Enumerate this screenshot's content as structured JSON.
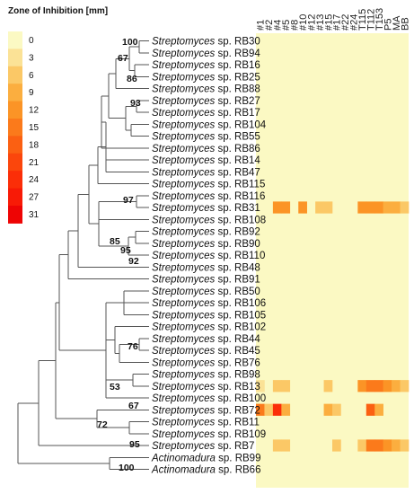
{
  "legend": {
    "title": "Zone of Inhibition [mm]",
    "values": [
      "0",
      "3",
      "6",
      "9",
      "12",
      "15",
      "18",
      "21",
      "24",
      "27",
      "31"
    ],
    "colors": [
      "#fbf9c3",
      "#fbe296",
      "#fbc866",
      "#fbae3f",
      "#fb9426",
      "#fb7a1b",
      "#fb6012",
      "#fb460c",
      "#fb2e08",
      "#f81a06",
      "#ee0404"
    ]
  },
  "columns": [
    "#1",
    "#2",
    "#4",
    "#5",
    "#8",
    "#10",
    "#12",
    "#13",
    "#15",
    "#17",
    "#22",
    "#24",
    "T115",
    "T112",
    "T153",
    "P5",
    "MA",
    "BB"
  ],
  "rows": [
    {
      "genus": "Streptomyces",
      "suffix": " sp. RB30"
    },
    {
      "genus": "Streptomyces",
      "suffix": " sp. RB94"
    },
    {
      "genus": "Streptomyces",
      "suffix": " sp. RB16"
    },
    {
      "genus": "Streptomyces",
      "suffix": " sp. RB25"
    },
    {
      "genus": "Streptomyces",
      "suffix": " sp. RB88"
    },
    {
      "genus": "Streptomyces",
      "suffix": " sp. RB27"
    },
    {
      "genus": "Streptomyces",
      "suffix": " sp. RB17"
    },
    {
      "genus": "Streptomyces",
      "suffix": " sp. RB104"
    },
    {
      "genus": "Streptomyces",
      "suffix": " sp. RB55"
    },
    {
      "genus": "Streptomyces",
      "suffix": " sp. RB86"
    },
    {
      "genus": "Streptomyces",
      "suffix": " sp. RB14"
    },
    {
      "genus": "Streptomyces",
      "suffix": " sp. RB47"
    },
    {
      "genus": "Streptomyces",
      "suffix": " sp. RB115"
    },
    {
      "genus": "Streptomyces",
      "suffix": " sp. RB116"
    },
    {
      "genus": "Streptomyces",
      "suffix": " sp. RB31"
    },
    {
      "genus": "Streptomyces",
      "suffix": " sp. RB108"
    },
    {
      "genus": "Streptomyces",
      "suffix": " sp. RB92"
    },
    {
      "genus": "Streptomyces",
      "suffix": " sp. RB90"
    },
    {
      "genus": "Streptomyces",
      "suffix": " sp. RB110"
    },
    {
      "genus": "Streptomyces",
      "suffix": " sp. RB48"
    },
    {
      "genus": "Streptomyces",
      "suffix": " sp. RB91"
    },
    {
      "genus": "Streptomyces",
      "suffix": " sp. RB50"
    },
    {
      "genus": "Streptomyces",
      "suffix": " sp. RB106"
    },
    {
      "genus": "Streptomyces",
      "suffix": " sp. RB105"
    },
    {
      "genus": "Streptomyces",
      "suffix": " sp. RB102"
    },
    {
      "genus": "Streptomyces",
      "suffix": " sp. RB44"
    },
    {
      "genus": "Streptomyces",
      "suffix": " sp. RB45"
    },
    {
      "genus": "Streptomyces",
      "suffix": " sp. RB76"
    },
    {
      "genus": "Streptomyces",
      "suffix": " sp. RB98"
    },
    {
      "genus": "Streptomyces",
      "suffix": " sp. RB13"
    },
    {
      "genus": "Streptomyces",
      "suffix": " sp. RB100"
    },
    {
      "genus": "Streptomyces",
      "suffix": " sp. RB72"
    },
    {
      "genus": "Streptomyces",
      "suffix": " sp. RB11"
    },
    {
      "genus": "Streptomyces",
      "suffix": " sp. RB109"
    },
    {
      "genus": "Streptomyces",
      "suffix": " sp. RB7"
    },
    {
      "genus": "Actinomadura",
      "suffix": " sp. RB99"
    },
    {
      "genus": "Actinomadura",
      "suffix": " sp. RB66"
    }
  ],
  "heat_cells": [
    {
      "row": "RB31",
      "col": "#4",
      "value": 12
    },
    {
      "row": "RB31",
      "col": "#5",
      "value": 12
    },
    {
      "row": "RB31",
      "col": "#10",
      "value": 12
    },
    {
      "row": "RB31",
      "col": "#13",
      "value": 6
    },
    {
      "row": "RB31",
      "col": "#15",
      "value": 6
    },
    {
      "row": "RB31",
      "col": "T115",
      "value": 12
    },
    {
      "row": "RB31",
      "col": "T112",
      "value": 12
    },
    {
      "row": "RB31",
      "col": "T153",
      "value": 12
    },
    {
      "row": "RB31",
      "col": "P5",
      "value": 9
    },
    {
      "row": "RB31",
      "col": "MA",
      "value": 9
    },
    {
      "row": "RB31",
      "col": "BB",
      "value": 6
    },
    {
      "row": "RB13",
      "col": "#1",
      "value": 3
    },
    {
      "row": "RB13",
      "col": "#4",
      "value": 6
    },
    {
      "row": "RB13",
      "col": "#5",
      "value": 6
    },
    {
      "row": "RB13",
      "col": "#15",
      "value": 6
    },
    {
      "row": "RB13",
      "col": "T115",
      "value": 12
    },
    {
      "row": "RB13",
      "col": "T112",
      "value": 15
    },
    {
      "row": "RB13",
      "col": "T153",
      "value": 15
    },
    {
      "row": "RB13",
      "col": "P5",
      "value": 12
    },
    {
      "row": "RB13",
      "col": "MA",
      "value": 9
    },
    {
      "row": "RB13",
      "col": "BB",
      "value": 6
    },
    {
      "row": "RB72",
      "col": "#1",
      "value": 15
    },
    {
      "row": "RB72",
      "col": "#2",
      "value": 6
    },
    {
      "row": "RB72",
      "col": "#4",
      "value": 24
    },
    {
      "row": "RB72",
      "col": "#5",
      "value": 9
    },
    {
      "row": "RB72",
      "col": "#15",
      "value": 9
    },
    {
      "row": "RB72",
      "col": "#17",
      "value": 6
    },
    {
      "row": "RB72",
      "col": "T112",
      "value": 18
    },
    {
      "row": "RB72",
      "col": "T153",
      "value": 9
    },
    {
      "row": "RB7",
      "col": "#4",
      "value": 6
    },
    {
      "row": "RB7",
      "col": "#5",
      "value": 6
    },
    {
      "row": "RB7",
      "col": "#17",
      "value": 6
    },
    {
      "row": "RB7",
      "col": "T115",
      "value": 6
    },
    {
      "row": "RB7",
      "col": "T112",
      "value": 15
    },
    {
      "row": "RB7",
      "col": "T153",
      "value": 15
    },
    {
      "row": "RB7",
      "col": "P5",
      "value": 12
    },
    {
      "row": "RB7",
      "col": "MA",
      "value": 9
    },
    {
      "row": "RB7",
      "col": "BB",
      "value": 6
    }
  ],
  "bootstrap": [
    "100",
    "67",
    "86",
    "93",
    "97",
    "85",
    "95",
    "92",
    "76",
    "53",
    "67",
    "72",
    "95",
    "100"
  ]
}
